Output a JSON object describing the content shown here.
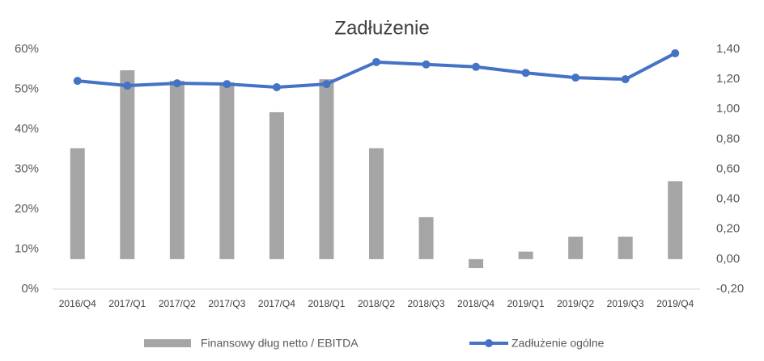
{
  "chart_data": {
    "type": "combo",
    "title": "Zadłużenie",
    "categories": [
      "2016/Q4",
      "2017/Q1",
      "2017/Q2",
      "2017/Q3",
      "2017/Q4",
      "2018/Q1",
      "2018/Q2",
      "2018/Q3",
      "2018/Q4",
      "2019/Q1",
      "2019/Q2",
      "2019/Q3",
      "2019/Q4"
    ],
    "series": [
      {
        "name": "Finansowy dług netto / EBITDA",
        "type": "bar",
        "axis": "y2",
        "color": "#a5a5a5",
        "values": [
          0.74,
          1.26,
          1.19,
          1.18,
          0.98,
          1.2,
          0.74,
          0.28,
          -0.06,
          0.05,
          0.15,
          0.15,
          0.52
        ]
      },
      {
        "name": "Zadłużenie ogólne",
        "type": "line",
        "color": "#4472c4",
        "values": [
          52.1,
          50.9,
          51.5,
          51.3,
          50.5,
          51.3,
          56.8,
          56.2,
          55.6,
          54.1,
          52.9,
          52.5,
          59.0
        ]
      }
    ],
    "ylim": [
      0,
      60
    ],
    "yticks": [
      {
        "value": 0,
        "label": "0%"
      },
      {
        "value": 10,
        "label": "10%"
      },
      {
        "value": 20,
        "label": "20%"
      },
      {
        "value": 30,
        "label": "30%"
      },
      {
        "value": 40,
        "label": "40%"
      },
      {
        "value": 50,
        "label": "50%"
      },
      {
        "value": 60,
        "label": "60%"
      }
    ],
    "y2lim": [
      -0.2,
      1.4
    ],
    "y2ticks": [
      {
        "value": -0.2,
        "label": "-0,20"
      },
      {
        "value": 0,
        "label": "0,00"
      },
      {
        "value": 0.2,
        "label": "0,20"
      },
      {
        "value": 0.4,
        "label": "0,40"
      },
      {
        "value": 0.6,
        "label": "0,60"
      },
      {
        "value": 0.8,
        "label": "0,80"
      },
      {
        "value": 1.0,
        "label": "1,00"
      },
      {
        "value": 1.2,
        "label": "1,20"
      },
      {
        "value": 1.4,
        "label": "1,40"
      }
    ],
    "grid": false,
    "legend": "bottom"
  }
}
